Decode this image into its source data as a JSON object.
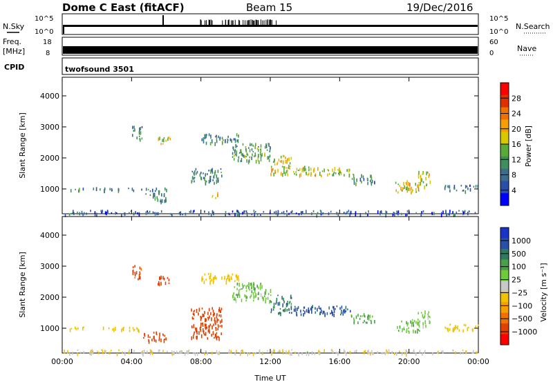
{
  "header": {
    "station": "Dome C East (fitACF)",
    "beam": "Beam 15",
    "date": "19/Dec/2016"
  },
  "top_panels": {
    "nsky": {
      "label": "N.Sky",
      "tick_top": "10^5",
      "tick_bottom": "10^0",
      "right_label": "N.Search",
      "right_tick_top": "10^5",
      "right_tick_bottom": "10^0"
    },
    "freq": {
      "label": "Freq.",
      "unit": "[MHz]",
      "tick_top": "18",
      "tick_bottom": "8",
      "right_label": "Nave",
      "right_tick_top": "60",
      "right_tick_bottom": "0"
    },
    "cpid": {
      "label": "CPID",
      "value": "twofsound 3501"
    }
  },
  "chart_data": [
    {
      "type": "heatmap",
      "panel": "power",
      "ylabel": "Slant Range [km]",
      "yticks": [
        "1000",
        "2000",
        "3000",
        "4000"
      ],
      "ylim": [
        200,
        4600
      ],
      "xlim": [
        0,
        24
      ],
      "colorbar": {
        "label": "Power [dB]",
        "ticks": [
          "4",
          "8",
          "12",
          "16",
          "20",
          "24",
          "28"
        ],
        "range": [
          0,
          32
        ],
        "colors": [
          "#0000ff",
          "#2a4fa8",
          "#3c6e8c",
          "#3f8f5e",
          "#5aaa3a",
          "#d8c800",
          "#f5a000",
          "#f07000",
          "#e03000",
          "#ff0000"
        ]
      },
      "echo_regions": [
        {
          "t0": 0.3,
          "t1": 3.6,
          "r0": 980,
          "r1": 1060,
          "value": 8
        },
        {
          "t0": 3.6,
          "t1": 6.0,
          "r0": 950,
          "r1": 1050,
          "value": 10
        },
        {
          "t0": 4.8,
          "t1": 6.0,
          "r0": 600,
          "r1": 900,
          "value": 9
        },
        {
          "t0": 4.0,
          "t1": 4.6,
          "r0": 2600,
          "r1": 3050,
          "value": 10
        },
        {
          "t0": 5.5,
          "t1": 6.2,
          "r0": 2450,
          "r1": 2700,
          "value": 18
        },
        {
          "t0": 7.4,
          "t1": 9.2,
          "r0": 1200,
          "r1": 1700,
          "value": 9
        },
        {
          "t0": 8.6,
          "t1": 9.0,
          "r0": 700,
          "r1": 900,
          "value": 18
        },
        {
          "t0": 8.0,
          "t1": 10.2,
          "r0": 2500,
          "r1": 2800,
          "value": 10
        },
        {
          "t0": 9.8,
          "t1": 12.0,
          "r0": 1900,
          "r1": 2500,
          "value": 12
        },
        {
          "t0": 12.0,
          "t1": 13.2,
          "r0": 1500,
          "r1": 2100,
          "value": 18
        },
        {
          "t0": 13.2,
          "t1": 16.6,
          "r0": 1450,
          "r1": 1750,
          "value": 17
        },
        {
          "t0": 16.6,
          "t1": 18.0,
          "r0": 1200,
          "r1": 1500,
          "value": 10
        },
        {
          "t0": 19.2,
          "t1": 20.6,
          "r0": 900,
          "r1": 1300,
          "value": 18
        },
        {
          "t0": 20.4,
          "t1": 21.2,
          "r0": 1100,
          "r1": 1600,
          "value": 16
        },
        {
          "t0": 22.0,
          "t1": 24.0,
          "r0": 950,
          "r1": 1150,
          "value": 8
        },
        {
          "t0": 0.0,
          "t1": 24.0,
          "r0": 200,
          "r1": 330,
          "value": 6
        }
      ]
    },
    {
      "type": "heatmap",
      "panel": "velocity",
      "ylabel": "Slant Range [km]",
      "yticks": [
        "1000",
        "2000",
        "3000",
        "4000"
      ],
      "ylim": [
        200,
        4600
      ],
      "xlim": [
        0,
        24
      ],
      "xlabel": "Time UT",
      "xticks": [
        "00:00",
        "04:00",
        "08:00",
        "12:00",
        "16:00",
        "20:00",
        "00:00"
      ],
      "colorbar": {
        "label": "Velocity [m s⁻¹]",
        "ticks": [
          "1000",
          "500",
          "100",
          "25",
          "−25",
          "−100",
          "−500",
          "−1000"
        ],
        "colors": [
          "#1a33c8",
          "#2a4fa8",
          "#2f7a5e",
          "#4aa048",
          "#6ecc3a",
          "#c8c8c8",
          "#f2c200",
          "#f5a000",
          "#f07000",
          "#e04000",
          "#ff0000"
        ]
      },
      "echo_regions": [
        {
          "t0": 0.3,
          "t1": 3.6,
          "r0": 980,
          "r1": 1060,
          "value": 0
        },
        {
          "t0": 3.6,
          "t1": 4.8,
          "r0": 950,
          "r1": 1050,
          "value": 0
        },
        {
          "t0": 4.0,
          "t1": 4.6,
          "r0": 2600,
          "r1": 3050,
          "value": -150
        },
        {
          "t0": 4.6,
          "t1": 6.0,
          "r0": 600,
          "r1": 900,
          "value": -300
        },
        {
          "t0": 5.5,
          "t1": 6.4,
          "r0": 2450,
          "r1": 2700,
          "value": -200
        },
        {
          "t0": 7.4,
          "t1": 9.2,
          "r0": 700,
          "r1": 1700,
          "value": -300
        },
        {
          "t0": 8.0,
          "t1": 10.2,
          "r0": 2500,
          "r1": 2800,
          "value": 0
        },
        {
          "t0": 9.8,
          "t1": 12.0,
          "r0": 1900,
          "r1": 2500,
          "value": 90
        },
        {
          "t0": 12.0,
          "t1": 13.2,
          "r0": 1500,
          "r1": 2100,
          "value": 400
        },
        {
          "t0": 13.2,
          "t1": 16.6,
          "r0": 1450,
          "r1": 1750,
          "value": 700
        },
        {
          "t0": 16.6,
          "t1": 18.0,
          "r0": 1200,
          "r1": 1500,
          "value": 120
        },
        {
          "t0": 19.2,
          "t1": 20.6,
          "r0": 900,
          "r1": 1300,
          "value": 80
        },
        {
          "t0": 20.4,
          "t1": 21.2,
          "r0": 1100,
          "r1": 1600,
          "value": 60
        },
        {
          "t0": 22.0,
          "t1": 24.0,
          "r0": 950,
          "r1": 1150,
          "value": 0
        },
        {
          "t0": 0.0,
          "t1": 24.0,
          "r0": 200,
          "r1": 330,
          "value": 30
        }
      ]
    }
  ]
}
